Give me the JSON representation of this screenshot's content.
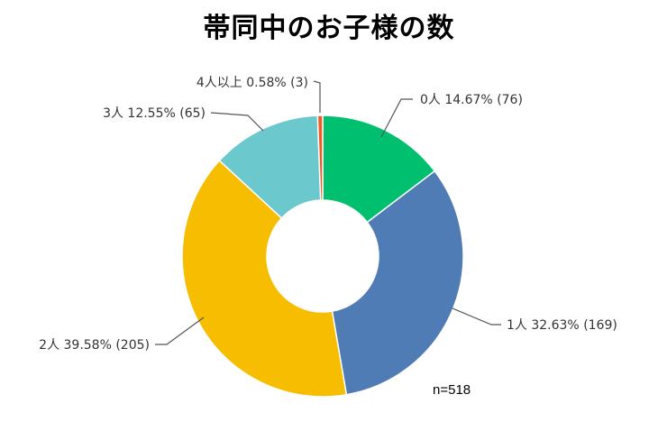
{
  "chart_data": {
    "type": "pie",
    "variant": "donut",
    "title": "帯同中のお子様の数",
    "note": "n=518",
    "slices": [
      {
        "category": "0人",
        "percent": 14.67,
        "count": 76,
        "label": "0人 14.67% (76)",
        "color": "#00BF6F"
      },
      {
        "category": "1人",
        "percent": 32.63,
        "count": 169,
        "label": "1人 32.63% (169)",
        "color": "#507CB6"
      },
      {
        "category": "2人",
        "percent": 39.58,
        "count": 205,
        "label": "2人 39.58% (205)",
        "color": "#F7BD00"
      },
      {
        "category": "3人",
        "percent": 12.55,
        "count": 65,
        "label": "3人 12.55% (65)",
        "color": "#6BC8CD"
      },
      {
        "category": "4人以上",
        "percent": 0.58,
        "count": 3,
        "label": "4人以上 0.58% (3)",
        "color": "#F05B24"
      }
    ]
  }
}
